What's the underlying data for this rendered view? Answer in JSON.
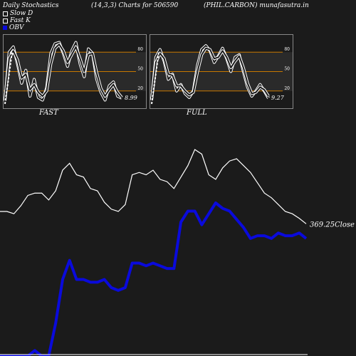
{
  "header": {
    "left": "Daily Stochastics",
    "mid": "(14,3,3) Charts for 506590",
    "right": "(PHIL.CARBON) munafasutra.in"
  },
  "legend": [
    {
      "label": "Slow  D",
      "color": "#ffffff",
      "style": "outline"
    },
    {
      "label": "Fast K",
      "color": "#ffffff",
      "style": "outline"
    },
    {
      "label": "OBV",
      "color": "#0a0adc",
      "style": "fill"
    }
  ],
  "colors": {
    "background": "#1b1b1b",
    "close": "#ffffff",
    "obv": "#0a0adc",
    "levels": "#c87800",
    "panel_border": "#888888"
  },
  "chart_data": [
    {
      "type": "line",
      "name": "FAST",
      "panel_label": "FAST",
      "ylim": [
        0,
        100
      ],
      "levels": [
        80,
        50,
        20
      ],
      "level_labels": [
        "80",
        "50",
        "20"
      ],
      "last_value_label": "8.99",
      "series": [
        {
          "name": "Fast K",
          "values": [
            5,
            80,
            88,
            62,
            32,
            52,
            12,
            38,
            10,
            6,
            25,
            78,
            93,
            95,
            78,
            58,
            82,
            95,
            62,
            42,
            85,
            78,
            38,
            18,
            6,
            28,
            34,
            12,
            9
          ]
        },
        {
          "name": "Slow  D",
          "values": [
            8,
            70,
            82,
            68,
            40,
            46,
            22,
            30,
            18,
            12,
            20,
            62,
            86,
            92,
            82,
            64,
            76,
            88,
            70,
            50,
            76,
            78,
            48,
            24,
            12,
            22,
            30,
            18,
            10
          ]
        }
      ]
    },
    {
      "type": "line",
      "name": "FULL",
      "panel_label": "FULL",
      "ylim": [
        0,
        100
      ],
      "levels": [
        80,
        50,
        20
      ],
      "level_labels": [
        "80",
        "50",
        "20"
      ],
      "last_value_label": "9.27",
      "series": [
        {
          "name": "Full K",
          "values": [
            6,
            72,
            84,
            66,
            38,
            46,
            20,
            30,
            16,
            10,
            20,
            60,
            84,
            90,
            82,
            64,
            74,
            86,
            70,
            50,
            72,
            76,
            50,
            26,
            12,
            20,
            30,
            20,
            9
          ]
        },
        {
          "name": "Full D",
          "values": [
            8,
            64,
            78,
            70,
            46,
            44,
            28,
            28,
            20,
            14,
            18,
            50,
            76,
            86,
            84,
            70,
            72,
            82,
            72,
            56,
            66,
            74,
            56,
            32,
            16,
            18,
            26,
            22,
            12
          ]
        }
      ]
    },
    {
      "type": "line",
      "name": "Price",
      "close_label": "369.25Close",
      "series": [
        {
          "name": "Close",
          "values": [
            380,
            380,
            378,
            385,
            394,
            396,
            396,
            390,
            398,
            416,
            422,
            412,
            410,
            400,
            398,
            388,
            382,
            380,
            386,
            412,
            414,
            412,
            416,
            408,
            406,
            400,
            410,
            420,
            434,
            430,
            412,
            408,
            418,
            424,
            426,
            420,
            414,
            405,
            396,
            392,
            386,
            380,
            378,
            374,
            369.25
          ]
        },
        {
          "name": "OBV",
          "values": [
            0,
            0,
            0,
            0,
            0,
            2,
            0,
            0,
            12,
            28,
            35,
            28,
            28,
            27,
            27,
            28,
            25,
            24,
            25,
            34,
            34,
            33,
            34,
            33,
            32,
            32,
            49,
            53,
            53,
            48,
            52,
            56,
            54,
            53,
            50,
            47,
            43,
            44,
            44,
            43,
            45,
            44,
            44,
            45,
            43
          ]
        }
      ]
    }
  ]
}
